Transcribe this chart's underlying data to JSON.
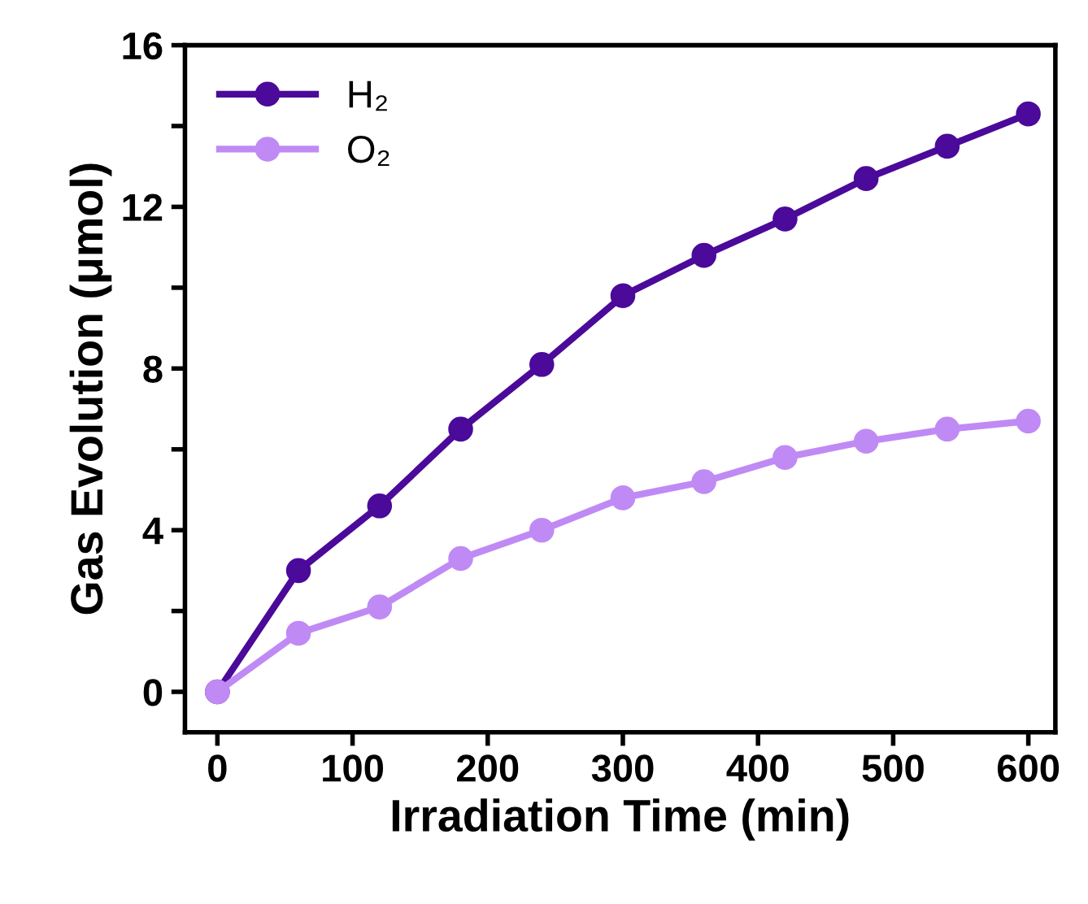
{
  "chart_data": {
    "type": "line",
    "xlabel": "Irradiation Time (min)",
    "ylabel": "Gas Evolution (μmol)",
    "x": [
      0,
      60,
      120,
      180,
      240,
      300,
      360,
      420,
      480,
      540,
      600
    ],
    "series": [
      {
        "name": "H₂",
        "color": "#4b0a9a",
        "values": [
          0,
          3.0,
          4.6,
          6.5,
          8.1,
          9.8,
          10.8,
          11.7,
          12.7,
          13.5,
          14.3
        ]
      },
      {
        "name": "O₂",
        "color": "#c08af5",
        "values": [
          0,
          1.45,
          2.1,
          3.3,
          4.0,
          4.8,
          5.2,
          5.8,
          6.2,
          6.5,
          6.7
        ]
      }
    ],
    "xlim": [
      -24,
      620
    ],
    "xticks": [
      0,
      100,
      200,
      300,
      400,
      500,
      600
    ],
    "ylim": [
      -1,
      16
    ],
    "yticks": [
      0,
      {
        "value": 2,
        "label": null
      },
      4,
      {
        "value": 6,
        "label": null
      },
      8,
      {
        "value": 10,
        "label": null
      },
      12,
      {
        "value": 14,
        "label": null
      },
      16
    ],
    "marker": "circle",
    "line_style": "solid",
    "legend": "top left",
    "grid": false
  }
}
